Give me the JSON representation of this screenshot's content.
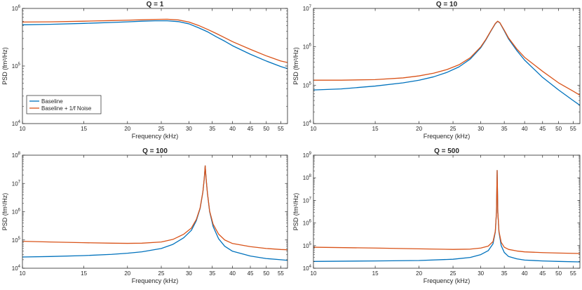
{
  "figure": {
    "colors": {
      "baseline": "#0072BD",
      "noise": "#D95319",
      "axis": "#262626"
    }
  },
  "chart_data": [
    {
      "type": "line",
      "title": "Q = 1",
      "xlabel": "Frequency (kHz)",
      "ylabel": "PSD (fm²/Hz)",
      "xscale": "log",
      "yscale": "log",
      "xlim": [
        10,
        57.5
      ],
      "ylim": [
        10000,
        1000000
      ],
      "xticks": [
        10,
        15,
        20,
        25,
        30,
        35,
        40,
        45,
        50,
        55
      ],
      "xtick_labels": [
        "10",
        "15",
        "20",
        "25",
        "30",
        "35",
        "40",
        "45",
        "50",
        "55"
      ],
      "yticks": [
        10000,
        100000,
        1000000
      ],
      "ytick_labels": [
        {
          "base": "10",
          "exp": "4"
        },
        {
          "base": "10",
          "exp": "5"
        },
        {
          "base": "10",
          "exp": "6"
        }
      ],
      "legend": {
        "location": "lower-left",
        "entries": [
          "Baseline",
          "Baseline + 1/f Noise"
        ]
      },
      "series": [
        {
          "name": "Baseline",
          "x": [
            10,
            12,
            15,
            18,
            20,
            22,
            24,
            26,
            28,
            30,
            32,
            34,
            36,
            38,
            40,
            45,
            50,
            55,
            57.5
          ],
          "values": [
            520000,
            530000,
            550000,
            570000,
            585000,
            600000,
            610000,
            610000,
            590000,
            540000,
            460000,
            390000,
            320000,
            270000,
            225000,
            160000,
            122000,
            98000,
            90000
          ]
        },
        {
          "name": "Baseline + 1/f Noise",
          "x": [
            10,
            12,
            15,
            18,
            20,
            22,
            24,
            26,
            28,
            30,
            32,
            34,
            36,
            38,
            40,
            45,
            50,
            55,
            57.5
          ],
          "values": [
            580000,
            585000,
            600000,
            615000,
            625000,
            635000,
            645000,
            650000,
            630000,
            580000,
            505000,
            430000,
            365000,
            310000,
            265000,
            195000,
            150000,
            122000,
            115000
          ]
        }
      ]
    },
    {
      "type": "line",
      "title": "Q = 10",
      "xlabel": "Frequency (kHz)",
      "ylabel": "PSD (fm²/Hz)",
      "xscale": "log",
      "yscale": "log",
      "xlim": [
        10,
        57.5
      ],
      "ylim": [
        10000,
        10000000
      ],
      "xticks": [
        10,
        15,
        20,
        25,
        30,
        35,
        40,
        45,
        50,
        55
      ],
      "xtick_labels": [
        "10",
        "15",
        "20",
        "25",
        "30",
        "35",
        "40",
        "45",
        "50",
        "55"
      ],
      "yticks": [
        10000,
        100000,
        1000000,
        10000000
      ],
      "ytick_labels": [
        {
          "base": "10",
          "exp": "4"
        },
        {
          "base": "10",
          "exp": "5"
        },
        {
          "base": "10",
          "exp": "6"
        },
        {
          "base": "10",
          "exp": "7"
        }
      ],
      "series": [
        {
          "name": "Baseline",
          "x": [
            10,
            12,
            15,
            18,
            20,
            22,
            24,
            26,
            28,
            30,
            31,
            32,
            33,
            33.5,
            34,
            35,
            36,
            38,
            40,
            45,
            50,
            55,
            57.5
          ],
          "values": [
            75000,
            80000,
            95000,
            115000,
            135000,
            165000,
            215000,
            300000,
            480000,
            950000,
            1500000,
            2500000,
            4000000,
            4600000,
            4200000,
            2600000,
            1600000,
            800000,
            450000,
            160000,
            75000,
            40000,
            30000
          ]
        },
        {
          "name": "Baseline + 1/f Noise",
          "x": [
            10,
            12,
            15,
            18,
            20,
            22,
            24,
            26,
            28,
            30,
            31,
            32,
            33,
            33.5,
            34,
            35,
            36,
            38,
            40,
            45,
            50,
            55,
            57.5
          ],
          "values": [
            135000,
            135000,
            140000,
            155000,
            175000,
            205000,
            255000,
            340000,
            520000,
            1000000,
            1550000,
            2550000,
            4050000,
            4650000,
            4250000,
            2700000,
            1700000,
            880000,
            530000,
            230000,
            115000,
            70000,
            55000
          ]
        }
      ]
    },
    {
      "type": "line",
      "title": "Q = 100",
      "xlabel": "Frequency (kHz)",
      "ylabel": "PSD (fm²/Hz)",
      "xscale": "log",
      "yscale": "log",
      "xlim": [
        10,
        57.5
      ],
      "ylim": [
        10000,
        100000000
      ],
      "xticks": [
        10,
        15,
        20,
        25,
        30,
        35,
        40,
        45,
        50,
        55
      ],
      "xtick_labels": [
        "10",
        "15",
        "20",
        "25",
        "30",
        "35",
        "40",
        "45",
        "50",
        "55"
      ],
      "yticks": [
        10000,
        100000,
        1000000,
        10000000,
        100000000
      ],
      "ytick_labels": [
        {
          "base": "10",
          "exp": "4"
        },
        {
          "base": "10",
          "exp": "5"
        },
        {
          "base": "10",
          "exp": "6"
        },
        {
          "base": "10",
          "exp": "7"
        },
        {
          "base": "10",
          "exp": "8"
        }
      ],
      "series": [
        {
          "name": "Baseline",
          "x": [
            10,
            12,
            15,
            18,
            20,
            22,
            25,
            27,
            29,
            30.5,
            31.5,
            32.3,
            32.9,
            33.2,
            33.4,
            33.6,
            33.9,
            34.4,
            35.2,
            36.5,
            38,
            40,
            45,
            50,
            55,
            57.5
          ],
          "values": [
            25000,
            26000,
            28000,
            31000,
            34000,
            38000,
            50000,
            70000,
            120000,
            220000,
            480000,
            1300000,
            5000000,
            15000000,
            42000000,
            15000000,
            4500000,
            1000000,
            300000,
            110000,
            60000,
            40000,
            27000,
            22000,
            20000,
            19000
          ]
        },
        {
          "name": "Baseline + 1/f Noise",
          "x": [
            10,
            12,
            15,
            18,
            20,
            22,
            25,
            27,
            29,
            30.5,
            31.5,
            32.3,
            32.9,
            33.2,
            33.4,
            33.6,
            33.9,
            34.4,
            35.2,
            36.5,
            38,
            40,
            45,
            50,
            55,
            57.5
          ],
          "values": [
            90000,
            85000,
            80000,
            77000,
            76000,
            77000,
            85000,
            105000,
            160000,
            265000,
            530000,
            1350000,
            5050000,
            15000000,
            42000000,
            15000000,
            4550000,
            1050000,
            360000,
            160000,
            100000,
            75000,
            58000,
            50000,
            46000,
            45000
          ]
        }
      ]
    },
    {
      "type": "line",
      "title": "Q = 500",
      "xlabel": "Frequency (kHz)",
      "ylabel": "PSD (fm²/Hz)",
      "xscale": "log",
      "yscale": "log",
      "xlim": [
        10,
        57.5
      ],
      "ylim": [
        10000,
        1000000000
      ],
      "xticks": [
        10,
        15,
        20,
        25,
        30,
        35,
        40,
        45,
        50,
        55
      ],
      "xtick_labels": [
        "10",
        "15",
        "20",
        "25",
        "30",
        "35",
        "40",
        "45",
        "50",
        "55"
      ],
      "yticks": [
        10000,
        100000,
        1000000,
        10000000,
        100000000,
        1000000000
      ],
      "ytick_labels": [
        {
          "base": "10",
          "exp": "4"
        },
        {
          "base": "10",
          "exp": "5"
        },
        {
          "base": "10",
          "exp": "6"
        },
        {
          "base": "10",
          "exp": "7"
        },
        {
          "base": "10",
          "exp": "8"
        },
        {
          "base": "10",
          "exp": "9"
        }
      ],
      "series": [
        {
          "name": "Baseline",
          "x": [
            10,
            15,
            20,
            25,
            28,
            30,
            31.5,
            32.5,
            33,
            33.25,
            33.4,
            33.55,
            33.8,
            34.3,
            35,
            36,
            38,
            40,
            45,
            50,
            57.5
          ],
          "values": [
            20000,
            21000,
            22000,
            25000,
            30000,
            40000,
            60000,
            120000,
            400000,
            3000000,
            210000000,
            3000000,
            400000,
            100000,
            50000,
            33000,
            26000,
            23000,
            21000,
            20000,
            19000
          ]
        },
        {
          "name": "Baseline + 1/f Noise",
          "x": [
            10,
            15,
            20,
            25,
            28,
            30,
            31.5,
            32.5,
            33,
            33.25,
            33.4,
            33.55,
            33.8,
            34.3,
            35,
            36,
            38,
            40,
            45,
            50,
            57.5
          ],
          "values": [
            85000,
            78000,
            72000,
            68000,
            70000,
            78000,
            95000,
            150000,
            430000,
            3000000,
            210000000,
            3000000,
            430000,
            140000,
            85000,
            68000,
            58000,
            53000,
            49000,
            47000,
            45000
          ]
        }
      ]
    }
  ]
}
